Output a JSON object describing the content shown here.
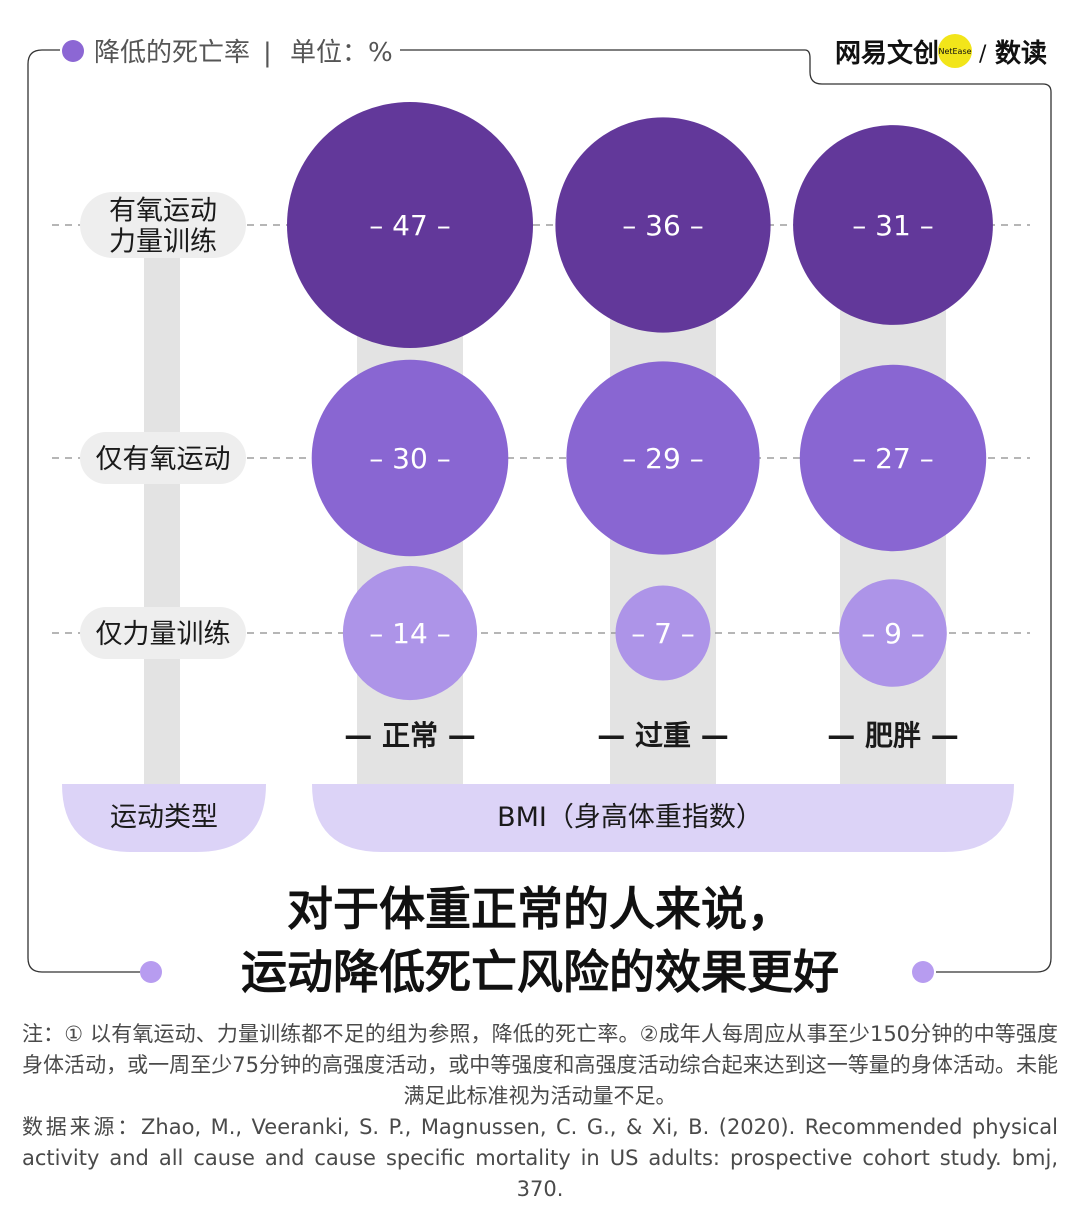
{
  "legend": {
    "label": "降低的死亡率",
    "separator": "|",
    "unit": "单位：%",
    "color": "#8c67d4"
  },
  "brand": {
    "name": "网易文创",
    "badge": "NetEase",
    "slash": "/",
    "sub": "数读",
    "badge_color": "#f2e51a"
  },
  "title": {
    "line1": "对于体重正常的人来说，",
    "line2": "运动降低死亡风险的效果更好"
  },
  "colors": {
    "exercise_both": "#62389a",
    "aerobic_only": "#8966d2",
    "strength_only": "#ad94e8",
    "track": "#e3e3e3",
    "axis_band": "#dcd3f7",
    "label_pill": "#eeeeee"
  },
  "chart_data": {
    "type": "bubble",
    "unit": "%",
    "y_axis_title": "运动类型",
    "x_axis_title": "BMI（身高体重指数）",
    "rows": [
      {
        "label_lines": [
          "有氧运动",
          "力量训练"
        ]
      },
      {
        "label_lines": [
          "仅有氧运动"
        ]
      },
      {
        "label_lines": [
          "仅力量训练"
        ]
      }
    ],
    "columns": [
      "正常",
      "过重",
      "肥胖"
    ],
    "values": [
      [
        47,
        36,
        31
      ],
      [
        30,
        29,
        27
      ],
      [
        14,
        7,
        9
      ]
    ]
  },
  "note": "注：① 以有氧运动、力量训练都不足的组为参照，降低的死亡率。②成年人每周应从事至少150分钟的中等强度身体活动，或一周至少75分钟的高强度活动，或中等强度和高强度活动综合起来达到这一等量的身体活动。未能满足此标准视为活动量不足。",
  "source": "数据来源：Zhao, M., Veeranki, S. P., Magnussen, C. G., & Xi, B. (2020). Recommended physical activity and all cause and cause specific mortality in US adults: prospective cohort study. bmj, 370."
}
